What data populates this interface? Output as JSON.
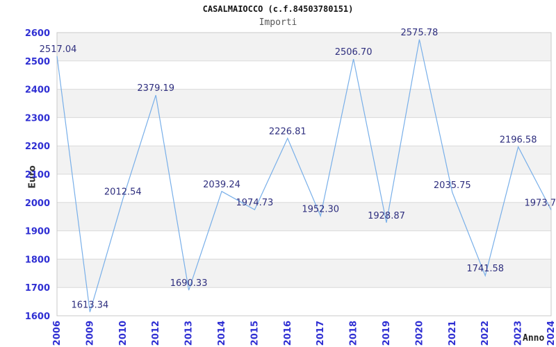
{
  "chart_data": {
    "type": "line",
    "title": "CASALMAIOCCO (c.f.84503780151)",
    "subtitle": "Importi",
    "xlabel": "Anno",
    "ylabel": "Euro",
    "categories": [
      "2006",
      "2009",
      "2010",
      "2012",
      "2013",
      "2014",
      "2015",
      "2016",
      "2017",
      "2018",
      "2019",
      "2020",
      "2021",
      "2022",
      "2023",
      "2024"
    ],
    "values": [
      2517.04,
      1613.34,
      2012.54,
      2379.19,
      1690.33,
      2039.24,
      1974.73,
      2226.81,
      1952.3,
      2506.7,
      1928.87,
      2575.78,
      2035.75,
      1741.58,
      2196.58,
      1973.7
    ],
    "point_labels": [
      "2517.04",
      "1613.34",
      "2012.54",
      "2379.19",
      "1690.33",
      "2039.24",
      "1974.73",
      "2226.81",
      "1952.30",
      "2506.70",
      "1928.87",
      "2575.78",
      "2035.75",
      "1741.58",
      "2196.58",
      "1973.7"
    ],
    "y_ticks": [
      1600,
      1700,
      1800,
      1900,
      2000,
      2100,
      2200,
      2300,
      2400,
      2500,
      2600
    ],
    "ylim": [
      1600,
      2600
    ],
    "grid": true,
    "legend": "none",
    "bands_alternating": true,
    "colors": {
      "line": "#78afe9",
      "tick_label": "#2f2fd3",
      "point_label": "#2e2e7e",
      "band": "#f2f2f2",
      "gridline": "#d9d9d9",
      "border": "#c9c9c9",
      "title": "#141414",
      "subtitle": "#555555",
      "axis_title": "#333333"
    }
  }
}
